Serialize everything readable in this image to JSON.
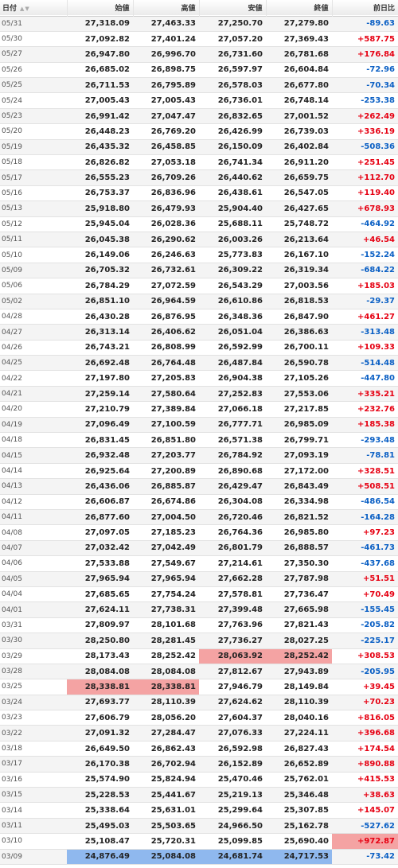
{
  "columns": [
    "日付",
    "始値",
    "高値",
    "安値",
    "終値",
    "前日比"
  ],
  "sort_arrows": "▲▼",
  "rows": [
    {
      "date": "05/31",
      "open": "27,318.09",
      "high": "27,463.33",
      "low": "27,250.70",
      "close": "27,279.80",
      "change": "-89.63"
    },
    {
      "date": "05/30",
      "open": "27,092.82",
      "high": "27,401.24",
      "low": "27,057.20",
      "close": "27,369.43",
      "change": "+587.75"
    },
    {
      "date": "05/27",
      "open": "26,947.80",
      "high": "26,996.70",
      "low": "26,731.60",
      "close": "26,781.68",
      "change": "+176.84"
    },
    {
      "date": "05/26",
      "open": "26,685.02",
      "high": "26,898.75",
      "low": "26,597.97",
      "close": "26,604.84",
      "change": "-72.96"
    },
    {
      "date": "05/25",
      "open": "26,711.53",
      "high": "26,795.89",
      "low": "26,578.03",
      "close": "26,677.80",
      "change": "-70.34"
    },
    {
      "date": "05/24",
      "open": "27,005.43",
      "high": "27,005.43",
      "low": "26,736.01",
      "close": "26,748.14",
      "change": "-253.38"
    },
    {
      "date": "05/23",
      "open": "26,991.42",
      "high": "27,047.47",
      "low": "26,832.65",
      "close": "27,001.52",
      "change": "+262.49"
    },
    {
      "date": "05/20",
      "open": "26,448.23",
      "high": "26,769.20",
      "low": "26,426.99",
      "close": "26,739.03",
      "change": "+336.19"
    },
    {
      "date": "05/19",
      "open": "26,435.32",
      "high": "26,458.85",
      "low": "26,150.09",
      "close": "26,402.84",
      "change": "-508.36"
    },
    {
      "date": "05/18",
      "open": "26,826.82",
      "high": "27,053.18",
      "low": "26,741.34",
      "close": "26,911.20",
      "change": "+251.45"
    },
    {
      "date": "05/17",
      "open": "26,555.23",
      "high": "26,709.26",
      "low": "26,440.62",
      "close": "26,659.75",
      "change": "+112.70"
    },
    {
      "date": "05/16",
      "open": "26,753.37",
      "high": "26,836.96",
      "low": "26,438.61",
      "close": "26,547.05",
      "change": "+119.40"
    },
    {
      "date": "05/13",
      "open": "25,918.80",
      "high": "26,479.93",
      "low": "25,904.40",
      "close": "26,427.65",
      "change": "+678.93"
    },
    {
      "date": "05/12",
      "open": "25,945.04",
      "high": "26,028.36",
      "low": "25,688.11",
      "close": "25,748.72",
      "change": "-464.92"
    },
    {
      "date": "05/11",
      "open": "26,045.38",
      "high": "26,290.62",
      "low": "26,003.26",
      "close": "26,213.64",
      "change": "+46.54"
    },
    {
      "date": "05/10",
      "open": "26,149.06",
      "high": "26,246.63",
      "low": "25,773.83",
      "close": "26,167.10",
      "change": "-152.24"
    },
    {
      "date": "05/09",
      "open": "26,705.32",
      "high": "26,732.61",
      "low": "26,309.22",
      "close": "26,319.34",
      "change": "-684.22"
    },
    {
      "date": "05/06",
      "open": "26,784.29",
      "high": "27,072.59",
      "low": "26,543.29",
      "close": "27,003.56",
      "change": "+185.03"
    },
    {
      "date": "05/02",
      "open": "26,851.10",
      "high": "26,964.59",
      "low": "26,610.86",
      "close": "26,818.53",
      "change": "-29.37"
    },
    {
      "date": "04/28",
      "open": "26,430.28",
      "high": "26,876.95",
      "low": "26,348.36",
      "close": "26,847.90",
      "change": "+461.27"
    },
    {
      "date": "04/27",
      "open": "26,313.14",
      "high": "26,406.62",
      "low": "26,051.04",
      "close": "26,386.63",
      "change": "-313.48"
    },
    {
      "date": "04/26",
      "open": "26,743.21",
      "high": "26,808.99",
      "low": "26,592.99",
      "close": "26,700.11",
      "change": "+109.33"
    },
    {
      "date": "04/25",
      "open": "26,692.48",
      "high": "26,764.48",
      "low": "26,487.84",
      "close": "26,590.78",
      "change": "-514.48"
    },
    {
      "date": "04/22",
      "open": "27,197.80",
      "high": "27,205.83",
      "low": "26,904.38",
      "close": "27,105.26",
      "change": "-447.80"
    },
    {
      "date": "04/21",
      "open": "27,259.14",
      "high": "27,580.64",
      "low": "27,252.83",
      "close": "27,553.06",
      "change": "+335.21"
    },
    {
      "date": "04/20",
      "open": "27,210.79",
      "high": "27,389.84",
      "low": "27,066.18",
      "close": "27,217.85",
      "change": "+232.76"
    },
    {
      "date": "04/19",
      "open": "27,096.49",
      "high": "27,100.59",
      "low": "26,777.71",
      "close": "26,985.09",
      "change": "+185.38"
    },
    {
      "date": "04/18",
      "open": "26,831.45",
      "high": "26,851.80",
      "low": "26,571.38",
      "close": "26,799.71",
      "change": "-293.48"
    },
    {
      "date": "04/15",
      "open": "26,932.48",
      "high": "27,203.77",
      "low": "26,784.92",
      "close": "27,093.19",
      "change": "-78.81"
    },
    {
      "date": "04/14",
      "open": "26,925.64",
      "high": "27,200.89",
      "low": "26,890.68",
      "close": "27,172.00",
      "change": "+328.51"
    },
    {
      "date": "04/13",
      "open": "26,436.06",
      "high": "26,885.87",
      "low": "26,429.47",
      "close": "26,843.49",
      "change": "+508.51"
    },
    {
      "date": "04/12",
      "open": "26,606.87",
      "high": "26,674.86",
      "low": "26,304.08",
      "close": "26,334.98",
      "change": "-486.54"
    },
    {
      "date": "04/11",
      "open": "26,877.60",
      "high": "27,004.50",
      "low": "26,720.46",
      "close": "26,821.52",
      "change": "-164.28"
    },
    {
      "date": "04/08",
      "open": "27,097.05",
      "high": "27,185.23",
      "low": "26,764.36",
      "close": "26,985.80",
      "change": "+97.23"
    },
    {
      "date": "04/07",
      "open": "27,032.42",
      "high": "27,042.49",
      "low": "26,801.79",
      "close": "26,888.57",
      "change": "-461.73"
    },
    {
      "date": "04/06",
      "open": "27,533.88",
      "high": "27,549.67",
      "low": "27,214.61",
      "close": "27,350.30",
      "change": "-437.68"
    },
    {
      "date": "04/05",
      "open": "27,965.94",
      "high": "27,965.94",
      "low": "27,662.28",
      "close": "27,787.98",
      "change": "+51.51"
    },
    {
      "date": "04/04",
      "open": "27,685.65",
      "high": "27,754.24",
      "low": "27,578.81",
      "close": "27,736.47",
      "change": "+70.49"
    },
    {
      "date": "04/01",
      "open": "27,624.11",
      "high": "27,738.31",
      "low": "27,399.48",
      "close": "27,665.98",
      "change": "-155.45"
    },
    {
      "date": "03/31",
      "open": "27,809.97",
      "high": "28,101.68",
      "low": "27,763.96",
      "close": "27,821.43",
      "change": "-205.82"
    },
    {
      "date": "03/30",
      "open": "28,250.80",
      "high": "28,281.45",
      "low": "27,736.27",
      "close": "28,027.25",
      "change": "-225.17"
    },
    {
      "date": "03/29",
      "open": "28,173.43",
      "high": "28,252.42",
      "low": "28,063.92",
      "close": "28,252.42",
      "change": "+308.53"
    },
    {
      "date": "03/28",
      "open": "28,084.08",
      "high": "28,084.08",
      "low": "27,812.67",
      "close": "27,943.89",
      "change": "-205.95"
    },
    {
      "date": "03/25",
      "open": "28,338.81",
      "high": "28,338.81",
      "low": "27,946.79",
      "close": "28,149.84",
      "change": "+39.45"
    },
    {
      "date": "03/24",
      "open": "27,693.77",
      "high": "28,110.39",
      "low": "27,624.62",
      "close": "28,110.39",
      "change": "+70.23"
    },
    {
      "date": "03/23",
      "open": "27,606.79",
      "high": "28,056.20",
      "low": "27,604.37",
      "close": "28,040.16",
      "change": "+816.05"
    },
    {
      "date": "03/22",
      "open": "27,091.32",
      "high": "27,284.47",
      "low": "27,076.33",
      "close": "27,224.11",
      "change": "+396.68"
    },
    {
      "date": "03/18",
      "open": "26,649.50",
      "high": "26,862.43",
      "low": "26,592.98",
      "close": "26,827.43",
      "change": "+174.54"
    },
    {
      "date": "03/17",
      "open": "26,170.38",
      "high": "26,702.94",
      "low": "26,152.89",
      "close": "26,652.89",
      "change": "+890.88"
    },
    {
      "date": "03/16",
      "open": "25,574.90",
      "high": "25,824.94",
      "low": "25,470.46",
      "close": "25,762.01",
      "change": "+415.53"
    },
    {
      "date": "03/15",
      "open": "25,228.53",
      "high": "25,441.67",
      "low": "25,219.13",
      "close": "25,346.48",
      "change": "+38.63"
    },
    {
      "date": "03/14",
      "open": "25,338.64",
      "high": "25,631.01",
      "low": "25,299.64",
      "close": "25,307.85",
      "change": "+145.07"
    },
    {
      "date": "03/11",
      "open": "25,495.03",
      "high": "25,503.65",
      "low": "24,966.50",
      "close": "25,162.78",
      "change": "-527.62"
    },
    {
      "date": "03/10",
      "open": "25,108.47",
      "high": "25,720.31",
      "low": "25,099.85",
      "close": "25,690.40",
      "change": "+972.87"
    },
    {
      "date": "03/09",
      "open": "24,876.49",
      "high": "25,084.08",
      "low": "24,681.74",
      "close": "24,717.53",
      "change": "-73.42"
    }
  ],
  "colors": {
    "up": "#e60012",
    "down": "#0a5fc4",
    "highlight_high": "#f4a3a3",
    "highlight_low": "#8fb8ee"
  },
  "highlights": [
    {
      "row_date": "03/29",
      "cells": [
        "low",
        "close"
      ],
      "color": "highlight_high"
    },
    {
      "row_date": "03/25",
      "cells": [
        "open",
        "high"
      ],
      "color": "highlight_high"
    },
    {
      "row_date": "03/10",
      "cells": [
        "change"
      ],
      "color": "highlight_high"
    },
    {
      "row_date": "03/09",
      "cells": [
        "open",
        "high",
        "low",
        "close"
      ],
      "color": "highlight_low"
    }
  ]
}
